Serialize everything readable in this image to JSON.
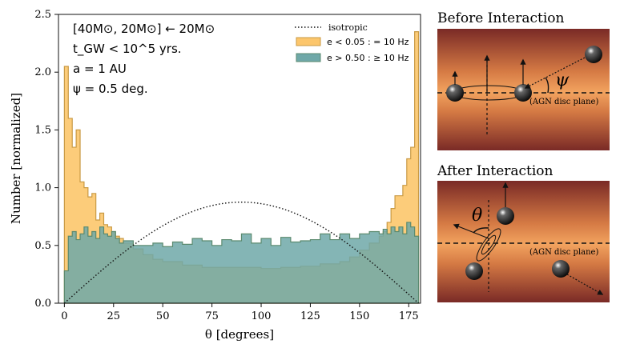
{
  "chart_data": {
    "type": "histogram",
    "annotations": [
      "[40M⊙, 20M⊙] ← 20M⊙",
      "t_GW < 10^5 yrs.",
      "a = 1 AU",
      "ψ = 0.5 deg."
    ],
    "xlabel": "θ [degrees]",
    "ylabel": "Number [normalized]",
    "xlim": [
      -3,
      181
    ],
    "ylim": [
      0,
      2.5
    ],
    "xticks": [
      0,
      25,
      50,
      75,
      100,
      125,
      150,
      175
    ],
    "yticks": [
      0.0,
      0.5,
      1.0,
      1.5,
      2.0,
      2.5
    ],
    "legend_position": "top-right",
    "bin_width": 2,
    "series": [
      {
        "name": "isotropic",
        "style": "dotted-line",
        "color": "#111111",
        "x": [
          0,
          15,
          30,
          45,
          60,
          75,
          90,
          105,
          120,
          135,
          150,
          165,
          180
        ],
        "y": [
          0.0,
          0.226,
          0.437,
          0.618,
          0.757,
          0.845,
          0.875,
          0.845,
          0.757,
          0.618,
          0.437,
          0.226,
          0.0
        ]
      },
      {
        "name": "e < 0.05 : = 10 Hz",
        "style": "step-filled",
        "color": "#fcc66c",
        "edge": "#c99a44",
        "x": [
          0,
          2,
          4,
          6,
          8,
          10,
          12,
          14,
          16,
          18,
          20,
          22,
          24,
          26,
          28,
          30,
          35,
          40,
          45,
          50,
          60,
          70,
          80,
          90,
          100,
          110,
          120,
          130,
          140,
          145,
          150,
          155,
          160,
          162,
          164,
          166,
          168,
          170,
          172,
          174,
          176,
          178
        ],
        "values": [
          2.05,
          1.6,
          1.35,
          1.5,
          1.05,
          1.0,
          0.92,
          0.95,
          0.72,
          0.78,
          0.68,
          0.66,
          0.62,
          0.58,
          0.56,
          0.52,
          0.47,
          0.42,
          0.38,
          0.36,
          0.33,
          0.31,
          0.31,
          0.31,
          0.3,
          0.31,
          0.32,
          0.34,
          0.36,
          0.4,
          0.46,
          0.52,
          0.58,
          0.62,
          0.7,
          0.82,
          0.93,
          0.93,
          1.02,
          1.25,
          1.35,
          2.35
        ]
      },
      {
        "name": "e > 0.50 : ≥ 10 Hz",
        "style": "step-filled",
        "color": "#6fa8a8",
        "edge": "#5b8a6f",
        "x": [
          0,
          2,
          4,
          6,
          8,
          10,
          12,
          14,
          16,
          18,
          20,
          22,
          24,
          26,
          28,
          30,
          35,
          40,
          45,
          50,
          55,
          60,
          65,
          70,
          75,
          80,
          85,
          90,
          95,
          100,
          105,
          110,
          115,
          120,
          125,
          130,
          135,
          140,
          145,
          150,
          155,
          160,
          162,
          164,
          166,
          168,
          170,
          172,
          174,
          176,
          178
        ],
        "values": [
          0.28,
          0.58,
          0.62,
          0.55,
          0.6,
          0.66,
          0.58,
          0.62,
          0.56,
          0.66,
          0.6,
          0.58,
          0.62,
          0.56,
          0.52,
          0.54,
          0.5,
          0.5,
          0.52,
          0.49,
          0.53,
          0.51,
          0.56,
          0.54,
          0.5,
          0.55,
          0.54,
          0.6,
          0.52,
          0.56,
          0.5,
          0.57,
          0.53,
          0.54,
          0.55,
          0.6,
          0.55,
          0.6,
          0.56,
          0.6,
          0.62,
          0.6,
          0.64,
          0.6,
          0.66,
          0.62,
          0.66,
          0.6,
          0.7,
          0.66,
          0.58
        ]
      }
    ]
  },
  "panels": {
    "before": {
      "title": "Before Interaction",
      "angle_label": "ψ",
      "plane_label": "(AGN disc plane)"
    },
    "after": {
      "title": "After Interaction",
      "angle_label": "θ",
      "plane_label": "(AGN disc plane)"
    }
  },
  "colors": {
    "isotropic": "#111111",
    "low_e_fill": "#fcc66c",
    "high_e_fill": "#6fa8a8",
    "overlap_fill": "#5f8d6d",
    "disc_dark": "#7a2a26",
    "disc_light": "#f2a35f"
  }
}
